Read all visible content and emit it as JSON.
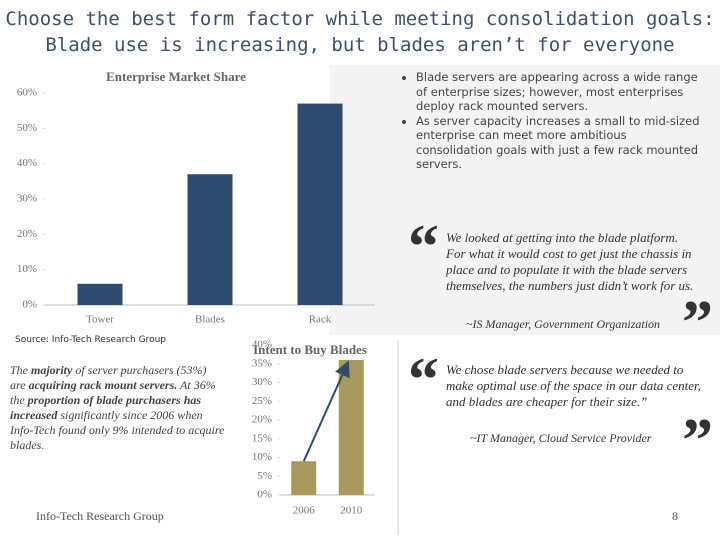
{
  "header": {
    "title_lines": [
      "Choose the best form factor while meeting consolidation goals:",
      "Blade use is increasing, but blades aren’t for everyone"
    ]
  },
  "chart_data": [
    {
      "type": "bar",
      "title": "Enterprise Market Share",
      "categories": [
        "Tower",
        "Blades",
        "Rack"
      ],
      "values": [
        6,
        37,
        57
      ],
      "color": "#2e4a6e",
      "ylim": [
        0,
        60
      ],
      "yticks": [
        {
          "value": 0,
          "label": "0%"
        },
        {
          "value": 10,
          "label": "10%"
        },
        {
          "value": 20,
          "label": "20%"
        },
        {
          "value": 30,
          "label": "30%"
        },
        {
          "value": 40,
          "label": "40%"
        },
        {
          "value": 50,
          "label": "50%"
        },
        {
          "value": 60,
          "label": "60%"
        }
      ]
    },
    {
      "type": "bar",
      "title": "Intent to Buy Blades",
      "categories": [
        "2006",
        "2010"
      ],
      "values": [
        9,
        36
      ],
      "color": "#a89a5c",
      "ylim": [
        0,
        40
      ],
      "yticks": [
        {
          "value": 0,
          "label": "0%"
        },
        {
          "value": 5,
          "label": "5%"
        },
        {
          "value": 10,
          "label": "10%"
        },
        {
          "value": 15,
          "label": "15%"
        },
        {
          "value": 20,
          "label": "20%"
        },
        {
          "value": 25,
          "label": "25%"
        },
        {
          "value": 30,
          "label": "30%"
        },
        {
          "value": 35,
          "label": "35%"
        },
        {
          "value": 40,
          "label": "40%"
        }
      ]
    }
  ],
  "source": "Source: Info-Tech Research Group",
  "bullets": [
    "Blade servers are appearing across a wide range of enterprise sizes; however, most enterprises deploy rack mounted servers.",
    "As server capacity increases a small to mid-sized enterprise can meet more ambitious consolidation goals with just a few rack mounted servers."
  ],
  "quote_marks": [
    "“",
    "”"
  ],
  "quotes": [
    {
      "text": "We looked at getting into the blade platform.  For what it would cost to get just the chassis in place and to populate it with the blade servers themselves, the numbers just didn’t work for us.",
      "author": "~IS Manager, Government Organization"
    },
    {
      "text": "We chose blade servers because we needed to make optimal use of the space in our data center, and blades are cheaper for their size.”",
      "author": "~IT Manager, Cloud Service Provider"
    }
  ],
  "paragraph": [
    "The ",
    "majority",
    " of server purchasers (53%) are ",
    "acquiring rack mount servers.",
    " At 36% the ",
    "proportion of blade purchasers has increased",
    " significantly since 2006 when Info-Tech found only 9% intended to acquire blades."
  ],
  "footer": {
    "org": "Info-Tech Research Group",
    "page": "8"
  }
}
